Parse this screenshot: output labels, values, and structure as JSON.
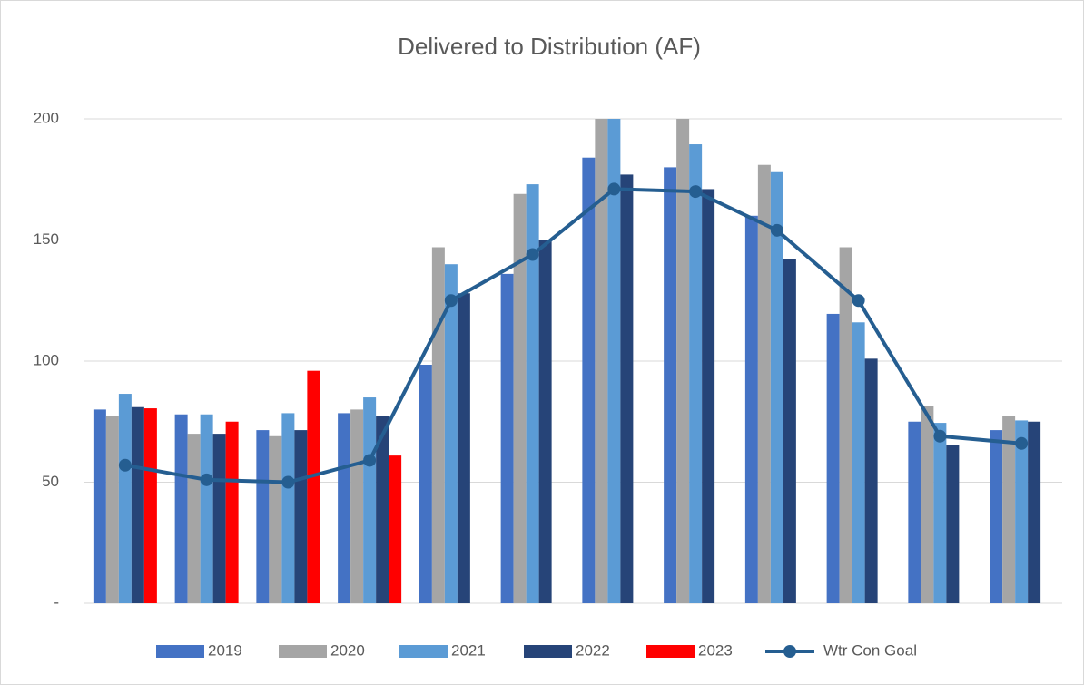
{
  "chart_data": {
    "type": "bar",
    "title": "Delivered to Distribution (AF)",
    "categories": [
      null,
      null,
      null,
      null,
      null,
      null,
      null,
      null,
      null,
      null,
      null,
      null
    ],
    "series": [
      {
        "name": "2019",
        "color": "#4472c4",
        "values": [
          80,
          78,
          71.5,
          78.5,
          98.5,
          136,
          184,
          180,
          160,
          119.5,
          75,
          71.5
        ]
      },
      {
        "name": "2020",
        "color": "#a5a5a5",
        "values": [
          77.5,
          70,
          69,
          80,
          147,
          169,
          200,
          200,
          181,
          147,
          81.5,
          77.5
        ]
      },
      {
        "name": "2021",
        "color": "#5b9bd5",
        "values": [
          86.5,
          78,
          78.5,
          85,
          140,
          173,
          200,
          189.5,
          178,
          116,
          74.5,
          75.5
        ]
      },
      {
        "name": "2022",
        "color": "#264478",
        "values": [
          81,
          70,
          71.5,
          77.5,
          128,
          150,
          177,
          171,
          142,
          101,
          65.5,
          75
        ]
      },
      {
        "name": "2023",
        "color": "#ff0000",
        "values": [
          80.5,
          75,
          96,
          61,
          null,
          null,
          null,
          null,
          null,
          null,
          null,
          null
        ]
      },
      {
        "name": "Wtr Con Goal",
        "type": "line",
        "color": "#255e91",
        "values": [
          57,
          51,
          50,
          59,
          125,
          144,
          171,
          170,
          154,
          125,
          69,
          66
        ]
      }
    ],
    "ylim": [
      0,
      200
    ],
    "yticks": [
      {
        "value": 0,
        "label": "-"
      },
      50,
      100,
      150,
      200
    ],
    "grid": true,
    "legend": "bottom"
  }
}
